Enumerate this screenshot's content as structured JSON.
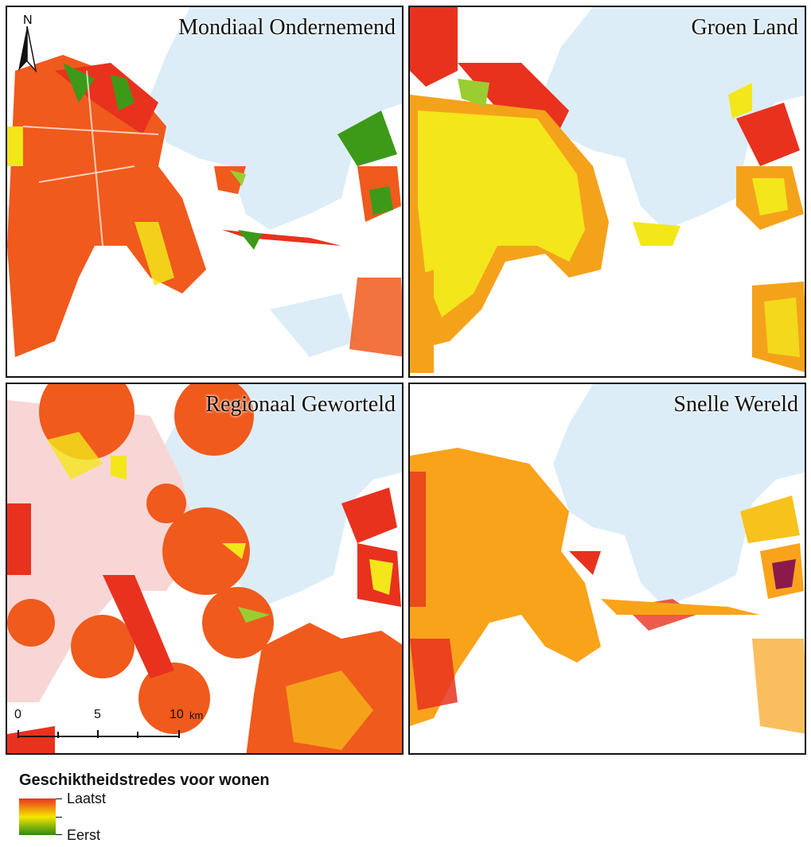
{
  "panels": [
    {
      "title": "Mondiaal Ondernemend"
    },
    {
      "title": "Groen Land"
    },
    {
      "title": "Regionaal Geworteld"
    },
    {
      "title": "Snelle Wereld"
    }
  ],
  "north_arrow": {
    "label": "N"
  },
  "scale_bar": {
    "labels": [
      "0",
      "5",
      "10"
    ],
    "unit": "km"
  },
  "legend": {
    "title": "Geschiktheidstredes voor wonen",
    "high_label": "Laatst",
    "low_label": "Eerst",
    "colors": {
      "last": "#e8321e",
      "mid": "#f5e600",
      "first": "#2a8a14"
    }
  },
  "colors": {
    "water": "#dcedf7",
    "red": "#e8321e",
    "orange_red": "#f05a1c",
    "orange": "#f9a31b",
    "yellow": "#f3e61b",
    "green": "#3c9a18",
    "pink": "#f8d6d6"
  }
}
